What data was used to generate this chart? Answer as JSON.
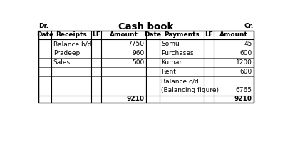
{
  "title": "Cash book",
  "dr_label": "Dr.",
  "cr_label": "Cr.",
  "header_left": [
    "Date",
    "Receipts",
    "LF",
    "Amount"
  ],
  "header_right": [
    "Date",
    "Payments",
    "LF",
    "Amount"
  ],
  "left_rows": [
    [
      "",
      "Balance b/d",
      "",
      "7750"
    ],
    [
      "",
      "Pradeep",
      "",
      "960"
    ],
    [
      "",
      "Sales",
      "",
      "500"
    ],
    [
      "",
      "",
      "",
      ""
    ],
    [
      "",
      "",
      "",
      ""
    ],
    [
      "",
      "",
      "",
      ""
    ]
  ],
  "right_rows": [
    [
      "",
      "Somu",
      "",
      "45"
    ],
    [
      "",
      "Purchases",
      "",
      "600"
    ],
    [
      "",
      "Kumar",
      "",
      "1200"
    ],
    [
      "",
      "Rent",
      "",
      "600"
    ],
    [
      "",
      "Balance c/d",
      "",
      ""
    ],
    [
      "",
      "(Balancing figure)",
      "",
      "6765"
    ]
  ],
  "total_left": "9210",
  "total_right": "9210",
  "bg_color": "#ffffff",
  "line_color": "#000000",
  "font_size": 6.5,
  "title_font_size": 9.5
}
